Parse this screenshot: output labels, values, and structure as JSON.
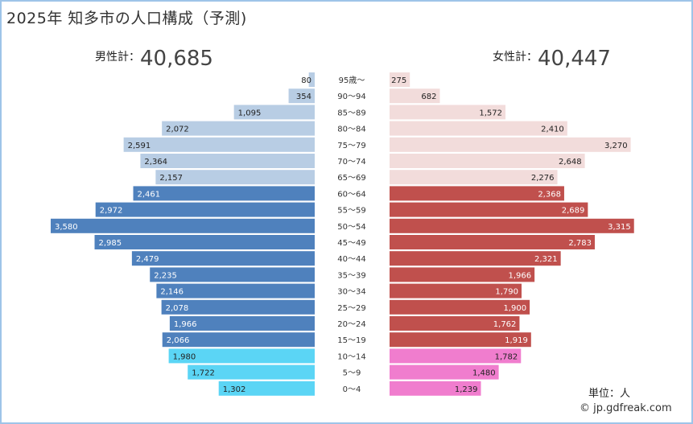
{
  "title": "2025年 知多市の人口構成（予測)",
  "totals": {
    "male_label": "男性計：",
    "male_value": "40,685",
    "female_label": "女性計：",
    "female_value": "40,447"
  },
  "unit": "単位：人",
  "credit": "© jp.gdfreak.com",
  "colors": {
    "male_old": "#b8cde4",
    "male_working": "#4f81bd",
    "male_young": "#5bd5f5",
    "female_old": "#f2dcdb",
    "female_working": "#c0504d",
    "female_young": "#f07dce"
  },
  "chart_data": {
    "type": "bar",
    "orientation": "horizontal-pyramid",
    "categories": [
      "95歳～",
      "90～94",
      "85～89",
      "80～84",
      "75～79",
      "70～74",
      "65～69",
      "60～64",
      "55～59",
      "50～54",
      "45～49",
      "40～44",
      "35～39",
      "30～34",
      "25～29",
      "20～24",
      "15～19",
      "10～14",
      "5～9",
      "0～4"
    ],
    "series": [
      {
        "side": "male",
        "values": [
          80,
          354,
          1095,
          2072,
          2591,
          2364,
          2157,
          2461,
          2972,
          3580,
          2985,
          2479,
          2235,
          2146,
          2078,
          1966,
          2066,
          1980,
          1722,
          1302
        ],
        "labels": [
          "80",
          "354",
          "1,095",
          "2,072",
          "2,591",
          "2,364",
          "2,157",
          "2,461",
          "2,972",
          "3,580",
          "2,985",
          "2,479",
          "2,235",
          "2,146",
          "2,078",
          "1,966",
          "2,066",
          "1,980",
          "1,722",
          "1,302"
        ]
      },
      {
        "side": "female",
        "values": [
          275,
          682,
          1572,
          2410,
          3270,
          2648,
          2276,
          2368,
          2689,
          3315,
          2783,
          2321,
          1966,
          1790,
          1900,
          1762,
          1919,
          1782,
          1480,
          1239
        ],
        "labels": [
          "275",
          "682",
          "1,572",
          "2,410",
          "3,270",
          "2,648",
          "2,276",
          "2,368",
          "2,689",
          "3,315",
          "2,783",
          "2,321",
          "1,966",
          "1,790",
          "1,900",
          "1,762",
          "1,919",
          "1,782",
          "1,480",
          "1,239"
        ]
      }
    ],
    "groups": [
      "old",
      "old",
      "old",
      "old",
      "old",
      "old",
      "old",
      "working",
      "working",
      "working",
      "working",
      "working",
      "working",
      "working",
      "working",
      "working",
      "working",
      "young",
      "young",
      "young"
    ],
    "xlim": [
      0,
      3580
    ]
  }
}
